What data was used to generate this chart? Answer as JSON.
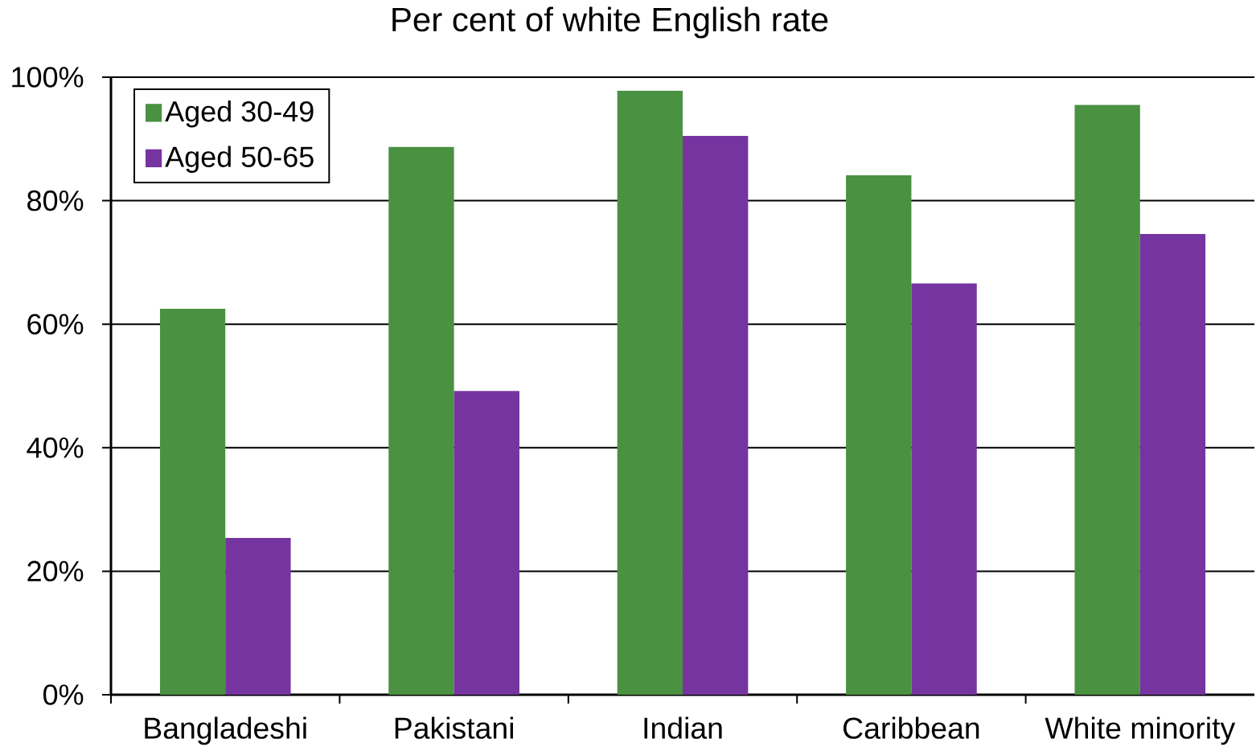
{
  "chart_data": {
    "type": "bar",
    "title": "Per cent of white English rate",
    "categories": [
      "Bangladeshi",
      "Pakistani",
      "Indian",
      "Caribbean",
      "White minority"
    ],
    "series": [
      {
        "name": "Aged 30-49",
        "color": "#4a9142",
        "values": [
          62.5,
          88.7,
          97.8,
          84.1,
          95.5
        ]
      },
      {
        "name": "Aged 50-65",
        "color": "#7534a0",
        "values": [
          25.4,
          49.2,
          90.5,
          66.6,
          74.6
        ]
      }
    ],
    "ylim": [
      0,
      100
    ],
    "yticks": [
      {
        "value": 0,
        "label": "0%"
      },
      {
        "value": 20,
        "label": "20%"
      },
      {
        "value": 40,
        "label": "40%"
      },
      {
        "value": 60,
        "label": "60%"
      },
      {
        "value": 80,
        "label": "80%"
      },
      {
        "value": 100,
        "label": "100%"
      }
    ],
    "grid": "y",
    "legend": "top left"
  }
}
